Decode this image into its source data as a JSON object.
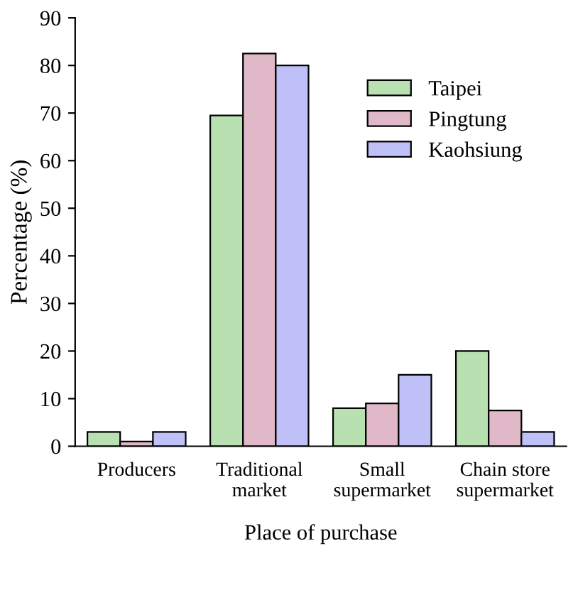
{
  "chart_data": {
    "type": "bar",
    "xlabel": "Place of purchase",
    "ylabel": "Percentage (%)",
    "categories": [
      "Producers",
      "Traditional\nmarket",
      "Small\nsupermarket",
      "Chain store\nsupermarket"
    ],
    "series": [
      {
        "name": "Taipei",
        "color": "#b8e0b0",
        "values": [
          3,
          69.5,
          8,
          20
        ]
      },
      {
        "name": "Pingtung",
        "color": "#e0b8c8",
        "values": [
          1,
          82.5,
          9,
          7.5
        ]
      },
      {
        "name": "Kaohsiung",
        "color": "#c0c0f8",
        "values": [
          3,
          80,
          15,
          3
        ]
      }
    ],
    "ylim": [
      0,
      90
    ],
    "yticks": [
      0,
      10,
      20,
      30,
      40,
      50,
      60,
      70,
      80,
      90
    ],
    "grid": false,
    "legend": "top right"
  }
}
